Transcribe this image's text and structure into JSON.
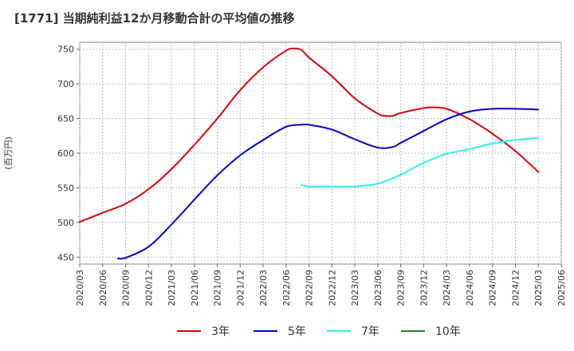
{
  "chart_data": {
    "type": "line",
    "title": "[1771]  当期純利益12か月移動合計の平均値の推移",
    "ylabel": "(百万円)",
    "xlabel": "",
    "ylim": [
      440,
      760
    ],
    "yticks": [
      450,
      500,
      550,
      600,
      650,
      700,
      750
    ],
    "x_ticks": [
      "2020/03",
      "2020/06",
      "2020/09",
      "2020/12",
      "2021/03",
      "2021/06",
      "2021/09",
      "2021/12",
      "2022/03",
      "2022/06",
      "2022/09",
      "2022/12",
      "2023/03",
      "2023/06",
      "2023/09",
      "2023/12",
      "2024/03",
      "2024/06",
      "2024/09",
      "2024/12",
      "2025/03",
      "2025/06"
    ],
    "grid": true,
    "legend_position": "bottom",
    "series": [
      {
        "name": "3年",
        "color": "#dd0000",
        "points": [
          [
            "2020/03",
            501
          ],
          [
            "2020/06",
            514
          ],
          [
            "2020/09",
            527
          ],
          [
            "2020/12",
            548
          ],
          [
            "2021/03",
            577
          ],
          [
            "2021/06",
            612
          ],
          [
            "2021/09",
            650
          ],
          [
            "2021/12",
            691
          ],
          [
            "2022/03",
            724
          ],
          [
            "2022/06",
            748
          ],
          [
            "2022/07",
            751
          ],
          [
            "2022/08",
            749
          ],
          [
            "2022/09",
            738
          ],
          [
            "2022/12",
            711
          ],
          [
            "2023/03",
            679
          ],
          [
            "2023/06",
            657
          ],
          [
            "2023/07",
            654
          ],
          [
            "2023/08",
            654
          ],
          [
            "2023/09",
            658
          ],
          [
            "2023/12",
            665
          ],
          [
            "2024/01",
            666
          ],
          [
            "2024/03",
            664
          ],
          [
            "2024/06",
            649
          ],
          [
            "2024/09",
            628
          ],
          [
            "2024/12",
            603
          ],
          [
            "2025/03",
            573
          ]
        ]
      },
      {
        "name": "5年",
        "color": "#0000cc",
        "points": [
          [
            "2020/08",
            448
          ],
          [
            "2020/09",
            449
          ],
          [
            "2020/12",
            465
          ],
          [
            "2021/03",
            497
          ],
          [
            "2021/06",
            533
          ],
          [
            "2021/09",
            568
          ],
          [
            "2021/12",
            597
          ],
          [
            "2022/03",
            619
          ],
          [
            "2022/06",
            638
          ],
          [
            "2022/08",
            641
          ],
          [
            "2022/09",
            641
          ],
          [
            "2022/12",
            634
          ],
          [
            "2023/03",
            620
          ],
          [
            "2023/06",
            608
          ],
          [
            "2023/08",
            609
          ],
          [
            "2023/09",
            615
          ],
          [
            "2023/12",
            632
          ],
          [
            "2024/03",
            649
          ],
          [
            "2024/06",
            660
          ],
          [
            "2024/09",
            664
          ],
          [
            "2024/12",
            664
          ],
          [
            "2025/03",
            663
          ]
        ]
      },
      {
        "name": "7年",
        "color": "#33eeee",
        "points": [
          [
            "2022/08",
            554
          ],
          [
            "2022/09",
            552
          ],
          [
            "2022/12",
            552
          ],
          [
            "2023/03",
            552
          ],
          [
            "2023/06",
            556
          ],
          [
            "2023/09",
            569
          ],
          [
            "2023/12",
            586
          ],
          [
            "2024/03",
            599
          ],
          [
            "2024/06",
            606
          ],
          [
            "2024/09",
            614
          ],
          [
            "2024/12",
            619
          ],
          [
            "2025/03",
            622
          ]
        ]
      },
      {
        "name": "10年",
        "color": "#228822",
        "points": []
      }
    ]
  }
}
